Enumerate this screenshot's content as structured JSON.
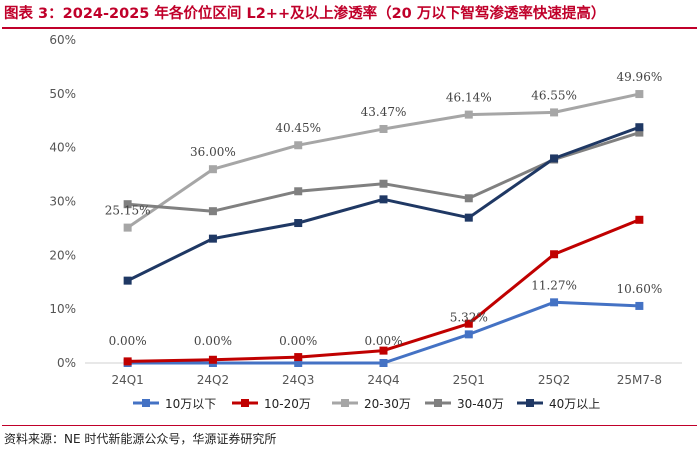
{
  "title": "图表 3：2024-2025 年各价位区间 L2++及以上渗透率（20 万以下智驾渗透率快速提高）",
  "source": "资料来源：NE 时代新能源公众号，华源证券研究所",
  "chart_data": {
    "type": "line",
    "categories": [
      "24Q1",
      "24Q2",
      "24Q3",
      "24Q4",
      "25Q1",
      "25Q2",
      "25M7-8"
    ],
    "ylim": [
      0,
      60
    ],
    "yticks": [
      "0%",
      "10%",
      "20%",
      "30%",
      "40%",
      "50%",
      "60%"
    ],
    "series": [
      {
        "name": "10万以下",
        "color": "#4472c4",
        "values": [
          0,
          0,
          0,
          0,
          5.32,
          11.27,
          10.6
        ],
        "labels": [
          "0.00%",
          "0.00%",
          "0.00%",
          "0.00%",
          "5.32%",
          "11.27%",
          "10.60%"
        ]
      },
      {
        "name": "10-20万",
        "color": "#c00000",
        "values": [
          0.3,
          0.6,
          1.1,
          2.3,
          7.3,
          20.2,
          26.6
        ]
      },
      {
        "name": "20-30万",
        "color": "#a6a6a6",
        "values": [
          25.15,
          36.0,
          40.45,
          43.47,
          46.14,
          46.55,
          49.96
        ],
        "labels": [
          "25.15%",
          "36.00%",
          "40.45%",
          "43.47%",
          "46.14%",
          "46.55%",
          "49.96%"
        ]
      },
      {
        "name": "30-40万",
        "color": "#808080",
        "values": [
          29.5,
          28.2,
          31.9,
          33.3,
          30.6,
          37.8,
          42.8
        ]
      },
      {
        "name": "40万以上",
        "color": "#1f3864",
        "values": [
          15.3,
          23.1,
          26.0,
          30.4,
          27.0,
          38.0,
          43.8
        ]
      }
    ]
  }
}
